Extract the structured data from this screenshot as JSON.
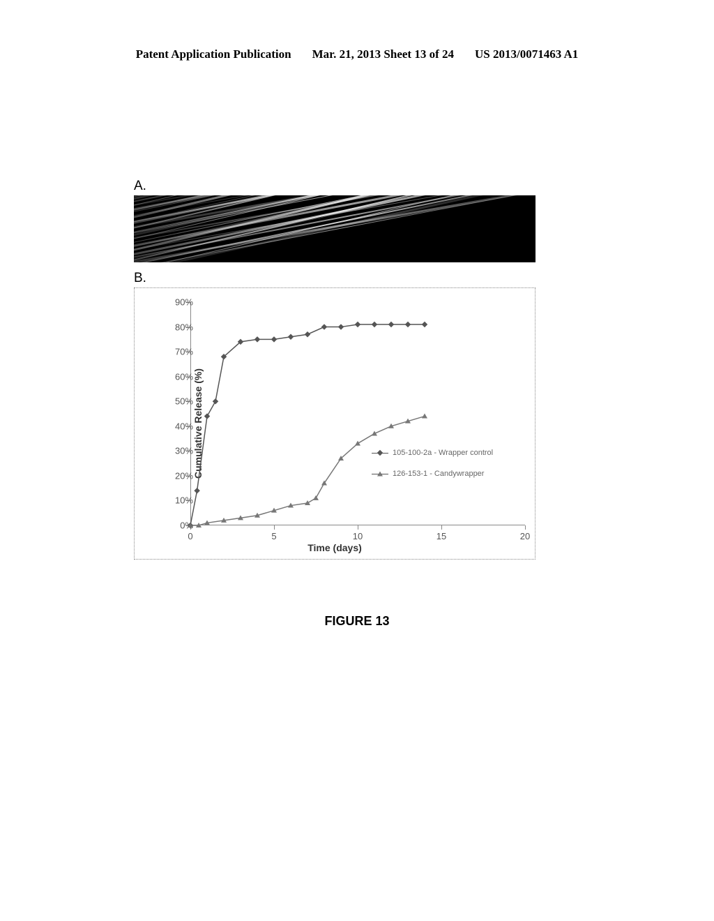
{
  "header": {
    "left": "Patent Application Publication",
    "center": "Mar. 21, 2013  Sheet 13 of 24",
    "right": "US 2013/0071463 A1"
  },
  "panelA": {
    "label": "A."
  },
  "panelB": {
    "label": "B."
  },
  "chart": {
    "type": "line",
    "y_axis_title": "Cumulative Release (%)",
    "x_axis_title": "Time (days)",
    "ylim": [
      0,
      90
    ],
    "xlim": [
      0,
      20
    ],
    "y_ticks": [
      0,
      10,
      20,
      30,
      40,
      50,
      60,
      70,
      80,
      90
    ],
    "y_tick_labels": [
      "0%",
      "10%",
      "20%",
      "30%",
      "40%",
      "50%",
      "60%",
      "70%",
      "80%",
      "90%"
    ],
    "x_ticks": [
      0,
      5,
      10,
      15,
      20
    ],
    "x_tick_labels": [
      "0",
      "5",
      "10",
      "15",
      "20"
    ],
    "label_fontsize": 13,
    "title_fontsize": 14,
    "line_color": "#555555",
    "line_width": 1.5,
    "background_color": "#ffffff",
    "border_color": "#888888",
    "series": [
      {
        "name": "105-100-2a - Wrapper control",
        "marker": "diamond",
        "color": "#555555",
        "x": [
          0,
          0.4,
          1,
          1.5,
          2,
          3,
          4,
          5,
          6,
          7,
          8,
          9,
          10,
          11,
          12,
          13,
          14
        ],
        "y": [
          0,
          14,
          44,
          50,
          68,
          74,
          75,
          75,
          76,
          77,
          80,
          80,
          81,
          81,
          81,
          81,
          81
        ]
      },
      {
        "name": "126-153-1 - Candywrapper",
        "marker": "triangle",
        "color": "#777777",
        "x": [
          0,
          0.5,
          1,
          2,
          3,
          4,
          5,
          6,
          7,
          7.5,
          8,
          9,
          10,
          11,
          12,
          13,
          14
        ],
        "y": [
          0,
          0,
          1,
          2,
          3,
          4,
          6,
          8,
          9,
          11,
          17,
          27,
          33,
          37,
          40,
          42,
          44
        ]
      }
    ],
    "legend": {
      "items": [
        {
          "label": "105-100-2a - Wrapper control",
          "marker": "diamond"
        },
        {
          "label": "126-153-1 - Candywrapper",
          "marker": "triangle"
        }
      ]
    }
  },
  "caption": "FIGURE 13"
}
